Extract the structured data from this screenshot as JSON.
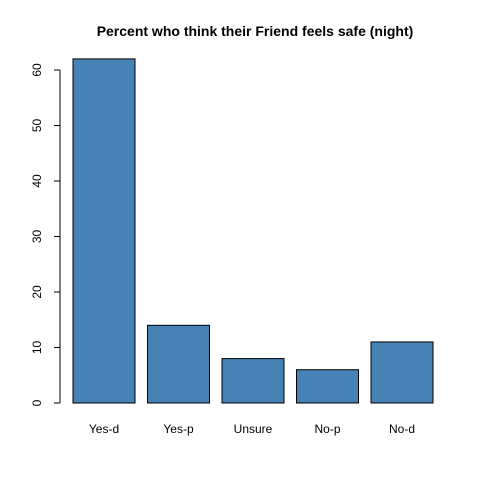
{
  "chart_data": {
    "type": "bar",
    "title": "Percent who think their Friend feels safe (night)",
    "xlabel": "",
    "ylabel": "",
    "categories": [
      "Yes-d",
      "Yes-p",
      "Unsure",
      "No-p",
      "No-d"
    ],
    "values": [
      62,
      14,
      8,
      6,
      11
    ],
    "ylim": [
      0,
      60
    ],
    "yticks": [
      0,
      10,
      20,
      30,
      40,
      50,
      60
    ],
    "grid": false,
    "bar_color": "#4682b4",
    "border_color": "#000000"
  }
}
